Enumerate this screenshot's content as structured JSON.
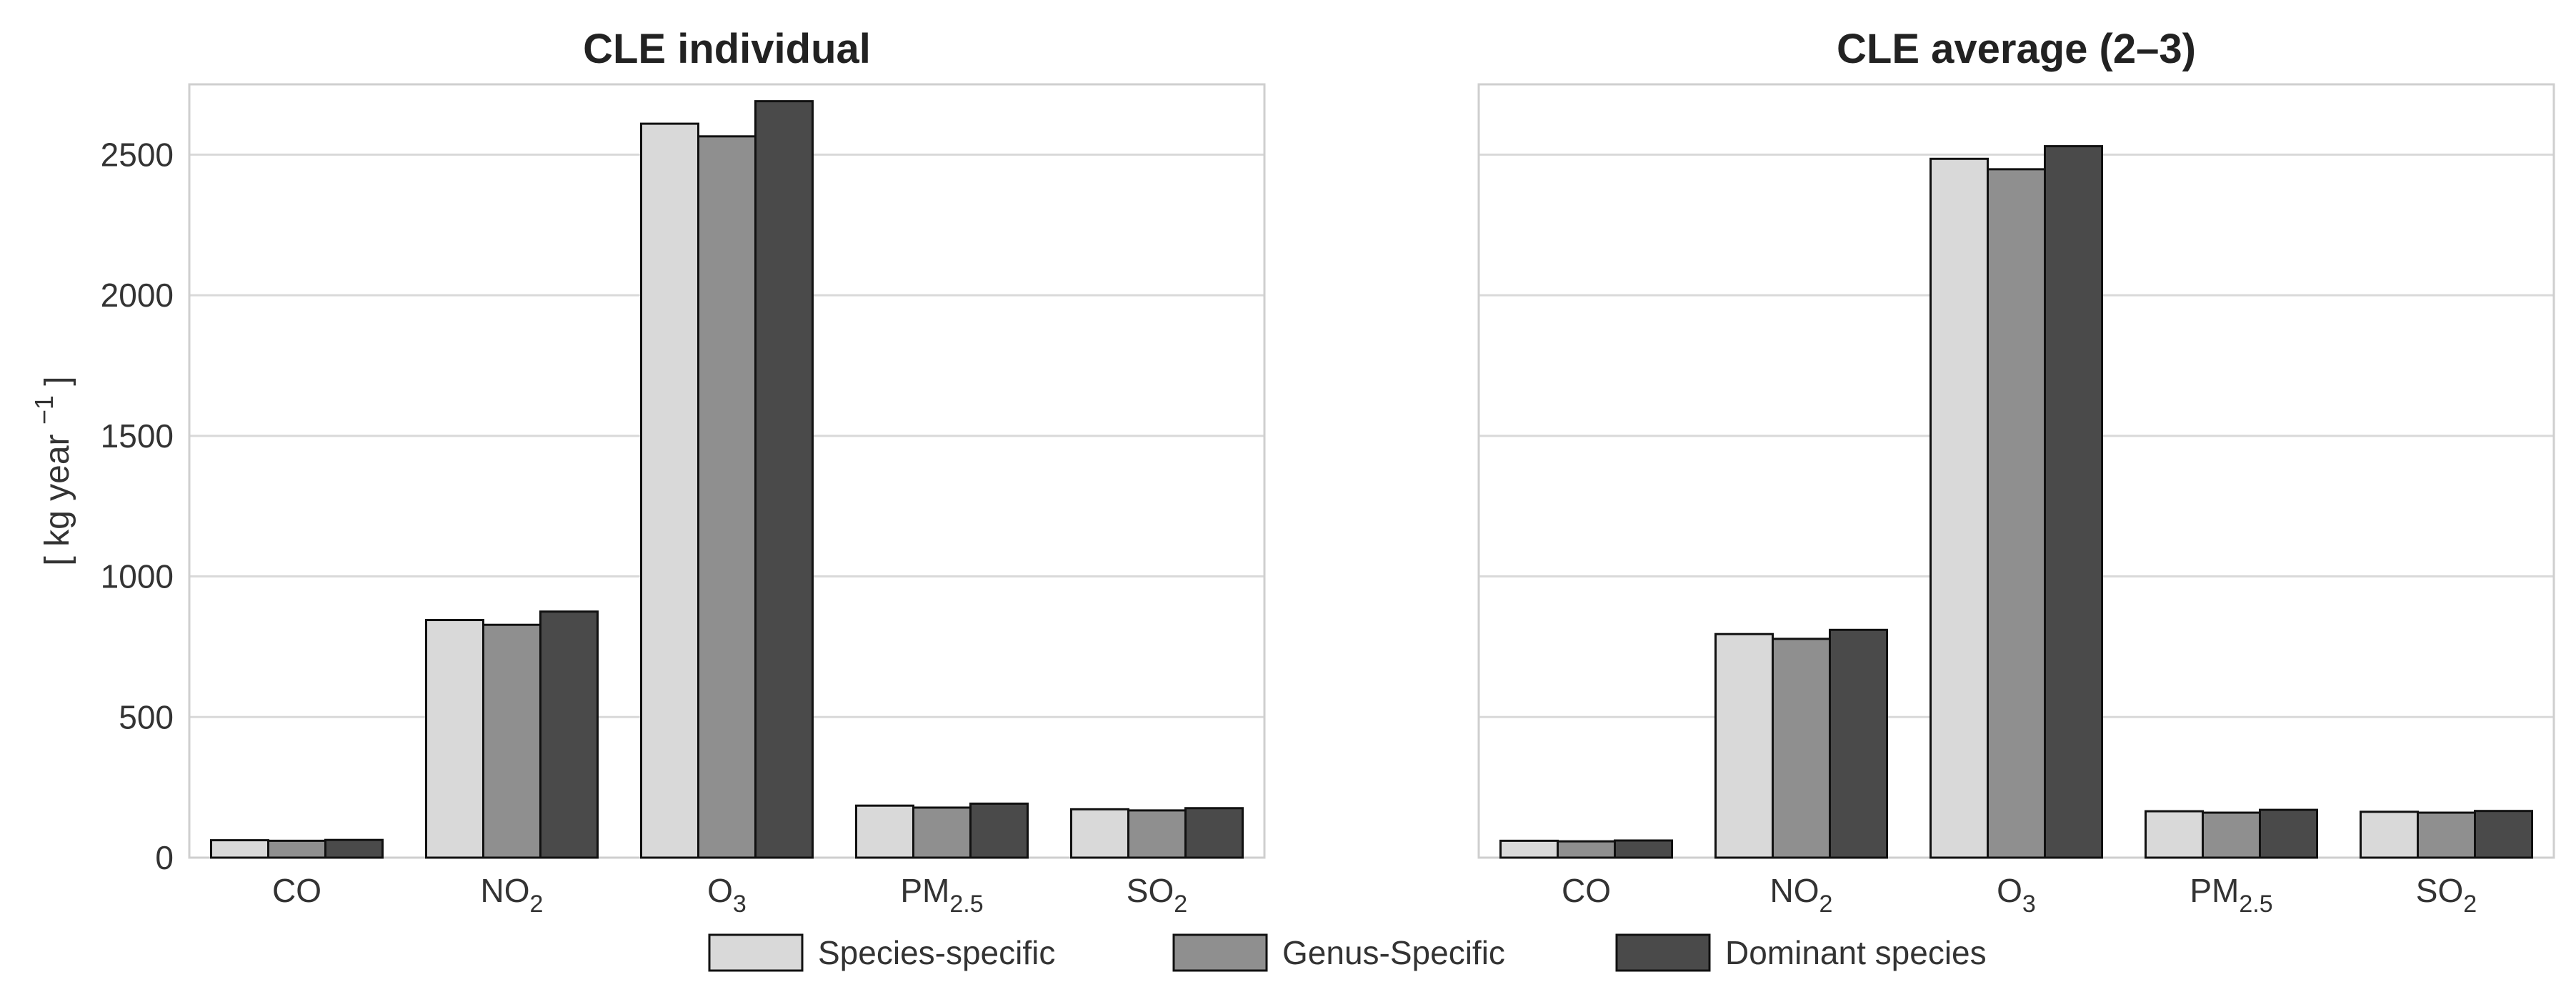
{
  "chart_data": [
    {
      "type": "bar",
      "title": "CLE individual",
      "ylabel": "[ kg year",
      "ylabel_superscript": "−1",
      "ylabel_close": "]",
      "categories": [
        {
          "base": "CO",
          "sub": ""
        },
        {
          "base": "NO",
          "sub": "2"
        },
        {
          "base": "O",
          "sub": "3"
        },
        {
          "base": "PM",
          "sub": "2.5"
        },
        {
          "base": "SO",
          "sub": "2"
        }
      ],
      "ylim": [
        0,
        2750
      ],
      "yticks": [
        0,
        500,
        1000,
        1500,
        2000,
        2500
      ],
      "grid": true,
      "series": [
        {
          "name": "Species-specific",
          "values": [
            62,
            845,
            2610,
            185,
            172
          ]
        },
        {
          "name": "Genus-Specific",
          "values": [
            60,
            828,
            2565,
            178,
            168
          ]
        },
        {
          "name": "Dominant species",
          "values": [
            63,
            875,
            2690,
            192,
            176
          ]
        }
      ]
    },
    {
      "type": "bar",
      "title": "CLE average (2–3)",
      "categories": [
        {
          "base": "CO",
          "sub": ""
        },
        {
          "base": "NO",
          "sub": "2"
        },
        {
          "base": "O",
          "sub": "3"
        },
        {
          "base": "PM",
          "sub": "2.5"
        },
        {
          "base": "SO",
          "sub": "2"
        }
      ],
      "ylim": [
        0,
        2750
      ],
      "yticks": [
        0,
        500,
        1000,
        1500,
        2000,
        2500
      ],
      "grid": true,
      "series": [
        {
          "name": "Species-specific",
          "values": [
            60,
            795,
            2485,
            165,
            163
          ]
        },
        {
          "name": "Genus-Specific",
          "values": [
            58,
            778,
            2448,
            160,
            160
          ]
        },
        {
          "name": "Dominant species",
          "values": [
            61,
            810,
            2530,
            170,
            166
          ]
        }
      ]
    }
  ],
  "legend": {
    "position": "bottom-center",
    "items": [
      {
        "label": "Species-specific",
        "color": "#d9d9d9"
      },
      {
        "label": "Genus-Specific",
        "color": "#8f8f8f"
      },
      {
        "label": "Dominant species",
        "color": "#4a4a4a"
      }
    ]
  },
  "colors": {
    "bar_stroke": "#111111",
    "grid": "#d9d9d9",
    "frame": "#cfcfcf"
  }
}
